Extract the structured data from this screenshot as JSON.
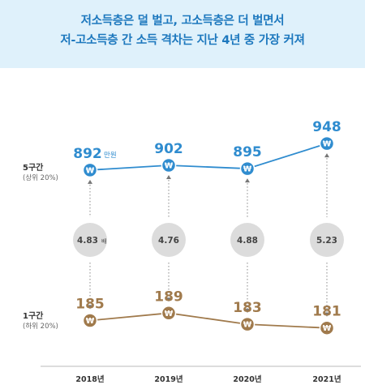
{
  "header": {
    "line1": "저소득층은 덜 벌고, 고소득층은 더 벌면서",
    "line2": "저-고소득층 간 소득 격차는 지난 4년 중 가장 커져"
  },
  "rows": {
    "top_title": "5구간",
    "top_sub": "(상위 20%)",
    "bottom_title": "1구간",
    "bottom_sub": "(하위 20%)"
  },
  "unit_label": "만원",
  "currency_icon": "won-icon",
  "colors": {
    "top_series": "#2f8ccf",
    "bottom_series": "#a07a4c",
    "ratio_circle": "#dcdcdc",
    "banner_text": "#1d78be",
    "banner_bg": "#dff1fb"
  },
  "chart_data": {
    "type": "line",
    "categories": [
      "2018년",
      "2019년",
      "2020년",
      "2021년"
    ],
    "series": [
      {
        "name": "5구간",
        "values": [
          892,
          902,
          895,
          948
        ]
      },
      {
        "name": "1구간",
        "values": [
          185,
          189,
          183,
          181
        ]
      }
    ],
    "ratios": [
      4.83,
      4.76,
      4.88,
      5.23
    ],
    "ratio_labels": [
      "4.83배",
      "4.76",
      "4.88",
      "5.23"
    ],
    "grid": false
  }
}
